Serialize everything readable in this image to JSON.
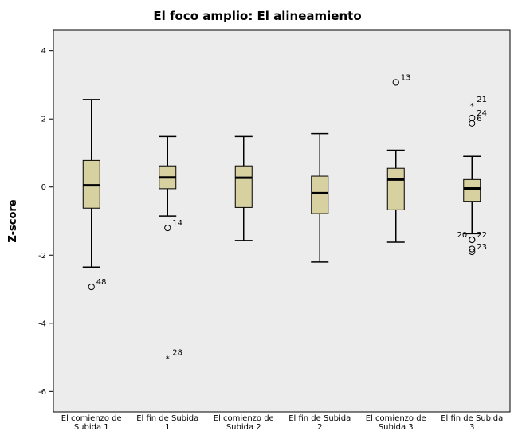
{
  "chart_data": {
    "type": "boxplot",
    "title": "El foco amplio: El alineamiento",
    "xlabel": "",
    "ylabel": "Z-score",
    "ylim": [
      -6.6,
      4.6
    ],
    "yticks": [
      4,
      2,
      0,
      -2,
      -4,
      -6
    ],
    "grid": false,
    "background": "#ececec",
    "box_color": "#d7d0a1",
    "categories": [
      [
        "El comienzo de",
        "Subida 1"
      ],
      [
        "El fin de Subida",
        "1"
      ],
      [
        "El comienzo de",
        "Subida 2"
      ],
      [
        "El fin de Subida",
        "2"
      ],
      [
        "El comienzo de",
        "Subida 3"
      ],
      [
        "El fin de Subida",
        "3"
      ]
    ],
    "boxes": [
      {
        "whisker_low": -2.35,
        "q1": -0.62,
        "median": 0.05,
        "q3": 0.78,
        "whisker_high": 2.57,
        "outliers": [
          {
            "value": -2.93,
            "marker": "circle",
            "label": "48"
          }
        ]
      },
      {
        "whisker_low": -0.85,
        "q1": -0.05,
        "median": 0.28,
        "q3": 0.62,
        "whisker_high": 1.48,
        "outliers": [
          {
            "value": -1.2,
            "marker": "circle",
            "label": "14"
          },
          {
            "value": -5.0,
            "marker": "star",
            "label": "28"
          }
        ]
      },
      {
        "whisker_low": -1.57,
        "q1": -0.6,
        "median": 0.27,
        "q3": 0.62,
        "whisker_high": 1.48,
        "outliers": []
      },
      {
        "whisker_low": -2.2,
        "q1": -0.78,
        "median": -0.18,
        "q3": 0.32,
        "whisker_high": 1.57,
        "outliers": []
      },
      {
        "whisker_low": -1.62,
        "q1": -0.67,
        "median": 0.22,
        "q3": 0.55,
        "whisker_high": 1.08,
        "outliers": [
          {
            "value": 3.07,
            "marker": "circle",
            "label": "13"
          }
        ]
      },
      {
        "whisker_low": -1.37,
        "q1": -0.42,
        "median": -0.04,
        "q3": 0.22,
        "whisker_high": 0.9,
        "outliers": [
          {
            "value": 2.42,
            "marker": "star",
            "label": "21"
          },
          {
            "value": 2.03,
            "marker": "circle",
            "label": "24"
          },
          {
            "value": 1.87,
            "marker": "circle",
            "label": "6"
          },
          {
            "value": -1.55,
            "marker": "circle",
            "label": "20",
            "label_side": "left"
          },
          {
            "value": -1.55,
            "marker": "circle",
            "label": "22"
          },
          {
            "value": -1.82,
            "marker": "circle",
            "label": ""
          },
          {
            "value": -1.9,
            "marker": "circle",
            "label": "23"
          }
        ]
      }
    ]
  }
}
